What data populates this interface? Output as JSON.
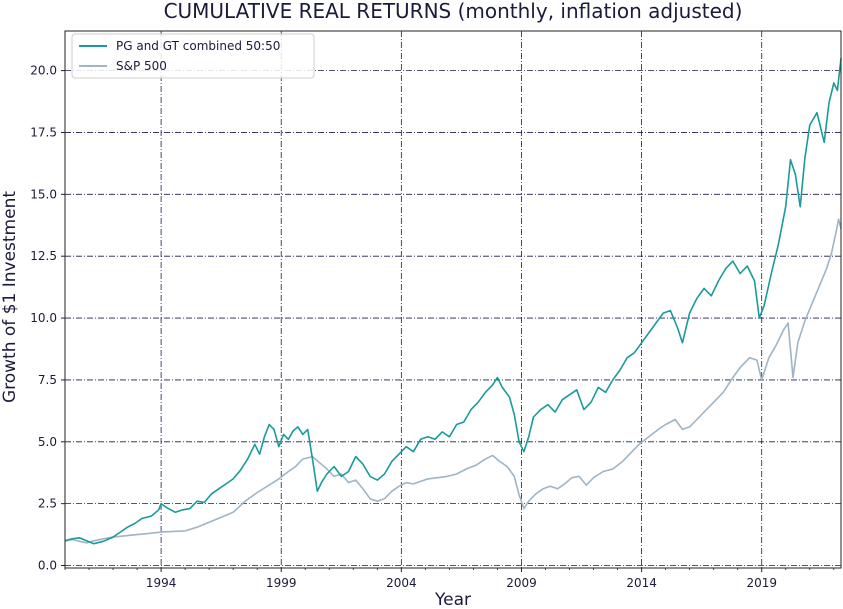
{
  "chart_data": {
    "type": "line",
    "title": "CUMULATIVE REAL RETURNS (monthly, inflation adjusted)",
    "xlabel": "Year",
    "ylabel": "Growth of $1 Investment",
    "xlim": [
      1990.0,
      2022.3
    ],
    "ylim": [
      -0.1,
      21.6
    ],
    "xticks": [
      1994,
      1999,
      2004,
      2009,
      2014,
      2019
    ],
    "xtick_labels": [
      "1994",
      "1999",
      "2004",
      "2009",
      "2014",
      "2019"
    ],
    "yticks": [
      0.0,
      2.5,
      5.0,
      7.5,
      10.0,
      12.5,
      15.0,
      17.5,
      20.0
    ],
    "ytick_labels": [
      "0.0",
      "2.5",
      "5.0",
      "7.5",
      "10.0",
      "12.5",
      "15.0",
      "17.5",
      "20.0"
    ],
    "grid": true,
    "legend_position": "top-left",
    "series": [
      {
        "name": "PG and GT combined 50:50",
        "color": "#1a9a9a",
        "points": [
          [
            1990.0,
            1.0
          ],
          [
            1990.3,
            1.08
          ],
          [
            1990.6,
            1.12
          ],
          [
            1990.9,
            1.0
          ],
          [
            1991.2,
            0.88
          ],
          [
            1991.6,
            0.98
          ],
          [
            1992.0,
            1.15
          ],
          [
            1992.3,
            1.35
          ],
          [
            1992.6,
            1.55
          ],
          [
            1992.9,
            1.7
          ],
          [
            1993.2,
            1.9
          ],
          [
            1993.6,
            2.0
          ],
          [
            1993.9,
            2.25
          ],
          [
            1994.0,
            2.5
          ],
          [
            1994.3,
            2.3
          ],
          [
            1994.6,
            2.15
          ],
          [
            1994.9,
            2.25
          ],
          [
            1995.2,
            2.3
          ],
          [
            1995.5,
            2.6
          ],
          [
            1995.8,
            2.55
          ],
          [
            1996.1,
            2.9
          ],
          [
            1996.4,
            3.1
          ],
          [
            1996.7,
            3.3
          ],
          [
            1997.0,
            3.5
          ],
          [
            1997.3,
            3.85
          ],
          [
            1997.6,
            4.3
          ],
          [
            1997.9,
            4.9
          ],
          [
            1998.1,
            4.5
          ],
          [
            1998.3,
            5.2
          ],
          [
            1998.5,
            5.7
          ],
          [
            1998.7,
            5.5
          ],
          [
            1998.9,
            4.8
          ],
          [
            1999.1,
            5.3
          ],
          [
            1999.3,
            5.1
          ],
          [
            1999.5,
            5.45
          ],
          [
            1999.7,
            5.6
          ],
          [
            1999.9,
            5.3
          ],
          [
            2000.1,
            5.5
          ],
          [
            2000.3,
            4.3
          ],
          [
            2000.5,
            3.0
          ],
          [
            2000.7,
            3.4
          ],
          [
            2000.9,
            3.7
          ],
          [
            2001.2,
            4.0
          ],
          [
            2001.5,
            3.6
          ],
          [
            2001.8,
            3.8
          ],
          [
            2002.1,
            4.4
          ],
          [
            2002.4,
            4.1
          ],
          [
            2002.7,
            3.6
          ],
          [
            2003.0,
            3.45
          ],
          [
            2003.3,
            3.7
          ],
          [
            2003.6,
            4.2
          ],
          [
            2003.9,
            4.5
          ],
          [
            2004.2,
            4.8
          ],
          [
            2004.5,
            4.6
          ],
          [
            2004.8,
            5.1
          ],
          [
            2005.1,
            5.2
          ],
          [
            2005.4,
            5.1
          ],
          [
            2005.7,
            5.4
          ],
          [
            2006.0,
            5.2
          ],
          [
            2006.3,
            5.7
          ],
          [
            2006.6,
            5.8
          ],
          [
            2006.9,
            6.3
          ],
          [
            2007.2,
            6.6
          ],
          [
            2007.5,
            7.0
          ],
          [
            2007.8,
            7.3
          ],
          [
            2008.0,
            7.6
          ],
          [
            2008.2,
            7.2
          ],
          [
            2008.5,
            6.8
          ],
          [
            2008.7,
            6.1
          ],
          [
            2008.9,
            5.0
          ],
          [
            2009.1,
            4.6
          ],
          [
            2009.3,
            5.2
          ],
          [
            2009.5,
            6.0
          ],
          [
            2009.8,
            6.3
          ],
          [
            2010.1,
            6.5
          ],
          [
            2010.4,
            6.2
          ],
          [
            2010.7,
            6.7
          ],
          [
            2011.0,
            6.9
          ],
          [
            2011.3,
            7.1
          ],
          [
            2011.6,
            6.3
          ],
          [
            2011.9,
            6.6
          ],
          [
            2012.2,
            7.2
          ],
          [
            2012.5,
            7.0
          ],
          [
            2012.8,
            7.5
          ],
          [
            2013.1,
            7.9
          ],
          [
            2013.4,
            8.4
          ],
          [
            2013.7,
            8.6
          ],
          [
            2014.0,
            9.0
          ],
          [
            2014.3,
            9.4
          ],
          [
            2014.6,
            9.8
          ],
          [
            2014.9,
            10.2
          ],
          [
            2015.2,
            10.3
          ],
          [
            2015.5,
            9.6
          ],
          [
            2015.7,
            9.0
          ],
          [
            2016.0,
            10.2
          ],
          [
            2016.3,
            10.8
          ],
          [
            2016.6,
            11.2
          ],
          [
            2016.9,
            10.9
          ],
          [
            2017.2,
            11.5
          ],
          [
            2017.5,
            12.0
          ],
          [
            2017.8,
            12.3
          ],
          [
            2018.1,
            11.8
          ],
          [
            2018.4,
            12.1
          ],
          [
            2018.7,
            11.5
          ],
          [
            2018.9,
            10.0
          ],
          [
            2019.1,
            10.5
          ],
          [
            2019.4,
            11.8
          ],
          [
            2019.7,
            13.0
          ],
          [
            2020.0,
            14.5
          ],
          [
            2020.2,
            16.4
          ],
          [
            2020.4,
            15.8
          ],
          [
            2020.6,
            14.5
          ],
          [
            2020.8,
            16.5
          ],
          [
            2021.0,
            17.8
          ],
          [
            2021.3,
            18.3
          ],
          [
            2021.6,
            17.1
          ],
          [
            2021.8,
            18.7
          ],
          [
            2022.0,
            19.5
          ],
          [
            2022.15,
            19.2
          ],
          [
            2022.3,
            20.5
          ]
        ]
      },
      {
        "name": "S&P 500",
        "color": "#9fb4c4",
        "points": [
          [
            1990.0,
            1.0
          ],
          [
            1990.3,
            1.05
          ],
          [
            1990.6,
            0.98
          ],
          [
            1990.9,
            0.92
          ],
          [
            1991.2,
            1.0
          ],
          [
            1991.6,
            1.08
          ],
          [
            1992.0,
            1.15
          ],
          [
            1992.5,
            1.2
          ],
          [
            1993.0,
            1.25
          ],
          [
            1993.5,
            1.3
          ],
          [
            1994.0,
            1.35
          ],
          [
            1994.5,
            1.38
          ],
          [
            1995.0,
            1.4
          ],
          [
            1995.5,
            1.55
          ],
          [
            1996.0,
            1.75
          ],
          [
            1996.5,
            1.95
          ],
          [
            1997.0,
            2.15
          ],
          [
            1997.5,
            2.6
          ],
          [
            1998.0,
            2.95
          ],
          [
            1998.5,
            3.25
          ],
          [
            1998.9,
            3.5
          ],
          [
            1999.3,
            3.8
          ],
          [
            1999.6,
            4.0
          ],
          [
            1999.9,
            4.3
          ],
          [
            2000.3,
            4.4
          ],
          [
            2000.6,
            4.15
          ],
          [
            2000.9,
            3.9
          ],
          [
            2001.2,
            3.6
          ],
          [
            2001.5,
            3.7
          ],
          [
            2001.8,
            3.35
          ],
          [
            2002.1,
            3.45
          ],
          [
            2002.4,
            3.1
          ],
          [
            2002.7,
            2.7
          ],
          [
            2003.0,
            2.6
          ],
          [
            2003.3,
            2.7
          ],
          [
            2003.6,
            3.0
          ],
          [
            2003.9,
            3.2
          ],
          [
            2004.2,
            3.35
          ],
          [
            2004.5,
            3.3
          ],
          [
            2004.8,
            3.4
          ],
          [
            2005.1,
            3.5
          ],
          [
            2005.5,
            3.55
          ],
          [
            2005.9,
            3.6
          ],
          [
            2006.3,
            3.7
          ],
          [
            2006.7,
            3.9
          ],
          [
            2007.1,
            4.05
          ],
          [
            2007.5,
            4.3
          ],
          [
            2007.8,
            4.45
          ],
          [
            2008.1,
            4.2
          ],
          [
            2008.4,
            4.0
          ],
          [
            2008.7,
            3.6
          ],
          [
            2008.9,
            2.85
          ],
          [
            2009.1,
            2.3
          ],
          [
            2009.3,
            2.6
          ],
          [
            2009.6,
            2.9
          ],
          [
            2009.9,
            3.1
          ],
          [
            2010.2,
            3.2
          ],
          [
            2010.5,
            3.1
          ],
          [
            2010.8,
            3.3
          ],
          [
            2011.1,
            3.55
          ],
          [
            2011.4,
            3.6
          ],
          [
            2011.7,
            3.25
          ],
          [
            2012.0,
            3.55
          ],
          [
            2012.4,
            3.8
          ],
          [
            2012.8,
            3.9
          ],
          [
            2013.2,
            4.2
          ],
          [
            2013.6,
            4.6
          ],
          [
            2013.9,
            4.9
          ],
          [
            2014.3,
            5.2
          ],
          [
            2014.7,
            5.5
          ],
          [
            2015.0,
            5.7
          ],
          [
            2015.4,
            5.9
          ],
          [
            2015.7,
            5.5
          ],
          [
            2016.0,
            5.6
          ],
          [
            2016.3,
            5.9
          ],
          [
            2016.7,
            6.3
          ],
          [
            2017.0,
            6.6
          ],
          [
            2017.4,
            7.0
          ],
          [
            2017.8,
            7.6
          ],
          [
            2018.1,
            8.0
          ],
          [
            2018.5,
            8.4
          ],
          [
            2018.8,
            8.3
          ],
          [
            2019.0,
            7.5
          ],
          [
            2019.3,
            8.4
          ],
          [
            2019.6,
            8.9
          ],
          [
            2019.9,
            9.5
          ],
          [
            2020.1,
            9.8
          ],
          [
            2020.3,
            7.6
          ],
          [
            2020.5,
            9.0
          ],
          [
            2020.8,
            9.9
          ],
          [
            2021.1,
            10.6
          ],
          [
            2021.4,
            11.3
          ],
          [
            2021.7,
            12.0
          ],
          [
            2021.9,
            12.6
          ],
          [
            2022.1,
            13.5
          ],
          [
            2022.2,
            14.0
          ],
          [
            2022.3,
            13.6
          ]
        ]
      }
    ]
  }
}
